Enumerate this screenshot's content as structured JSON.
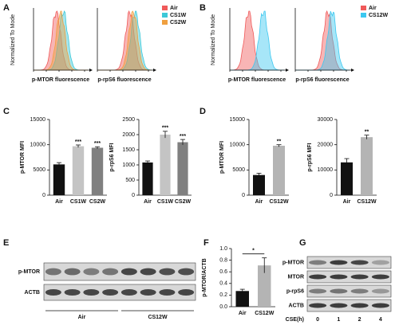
{
  "panel_labels": [
    "A",
    "B",
    "C",
    "D",
    "E",
    "F",
    "G"
  ],
  "flow_a": {
    "y_label": "Normalized To Mode",
    "x_labels": [
      "p-MTOR fluorescence",
      "p-rpS6 fluorescence"
    ],
    "legend": [
      {
        "name": "Air",
        "color": "#f05a5a"
      },
      {
        "name": "CS1W",
        "color": "#3cc8d8"
      },
      {
        "name": "CS2W",
        "color": "#f0a040"
      }
    ]
  },
  "flow_b": {
    "y_label": "Normalized To Mode",
    "x_labels": [
      "p-MTOR fluorescence",
      "p-rpS6 fluorescence"
    ],
    "legend": [
      {
        "name": "Air",
        "color": "#f05a5a"
      },
      {
        "name": "CS12W",
        "color": "#3cc8f0"
      }
    ]
  },
  "chart_data": [
    {
      "type": "bar",
      "y_label": "p-MTOR MFI",
      "categories": [
        "Air",
        "CS1W",
        "CS2W"
      ],
      "values": [
        6100,
        9700,
        9400
      ],
      "errors": [
        350,
        250,
        200
      ],
      "colors": [
        "#111111",
        "#c4c4c4",
        "#808080"
      ],
      "significance": [
        null,
        "***",
        "***"
      ],
      "ylim": [
        0,
        15000
      ],
      "yticks": [
        0,
        5000,
        10000,
        15000
      ]
    },
    {
      "type": "bar",
      "y_label": "p-rpS6 MFI",
      "categories": [
        "Air",
        "CS1W",
        "CS2W"
      ],
      "values": [
        1080,
        2000,
        1750
      ],
      "errors": [
        50,
        110,
        90
      ],
      "colors": [
        "#111111",
        "#c4c4c4",
        "#808080"
      ],
      "significance": [
        null,
        "***",
        "***"
      ],
      "ylim": [
        0,
        2500
      ],
      "yticks": [
        0,
        500,
        1000,
        1500,
        2000,
        2500
      ]
    },
    {
      "type": "bar",
      "y_label": "p-MTOR MFI",
      "categories": [
        "Air",
        "CS12W"
      ],
      "values": [
        4000,
        9800
      ],
      "errors": [
        350,
        200
      ],
      "colors": [
        "#111111",
        "#b4b4b4"
      ],
      "significance": [
        null,
        "**"
      ],
      "ylim": [
        0,
        15000
      ],
      "yticks": [
        0,
        5000,
        10000,
        15000
      ]
    },
    {
      "type": "bar",
      "y_label": "p-rpS6 MFI",
      "categories": [
        "Air",
        "CS12W"
      ],
      "values": [
        13000,
        23000
      ],
      "errors": [
        1500,
        800
      ],
      "colors": [
        "#111111",
        "#b4b4b4"
      ],
      "significance": [
        null,
        "**"
      ],
      "ylim": [
        0,
        30000
      ],
      "yticks": [
        0,
        10000,
        20000,
        30000
      ]
    },
    {
      "type": "bar",
      "y_label": "p-MTOR/ACTB",
      "categories": [
        "Air",
        "CS12W"
      ],
      "values": [
        0.27,
        0.71
      ],
      "errors": [
        0.03,
        0.13
      ],
      "colors": [
        "#111111",
        "#b4b4b4"
      ],
      "bracket_label": "*",
      "ylim": [
        0,
        1.0
      ],
      "yticks": [
        {
          "value": 0,
          "label": "0.0"
        },
        0.2,
        0.4,
        0.6,
        0.8,
        {
          "value": 1.0,
          "label": "1.0"
        }
      ]
    }
  ],
  "blot_e": {
    "rows": [
      "p-MTOR",
      "ACTB"
    ],
    "groups": [
      "Air",
      "CS12W"
    ]
  },
  "blot_g": {
    "rows": [
      "p-MTOR",
      "MTOR",
      "p-rpS6",
      "ACTB"
    ],
    "x_label": "CSE(h)",
    "lanes": [
      "0",
      "1",
      "2",
      "4"
    ]
  }
}
